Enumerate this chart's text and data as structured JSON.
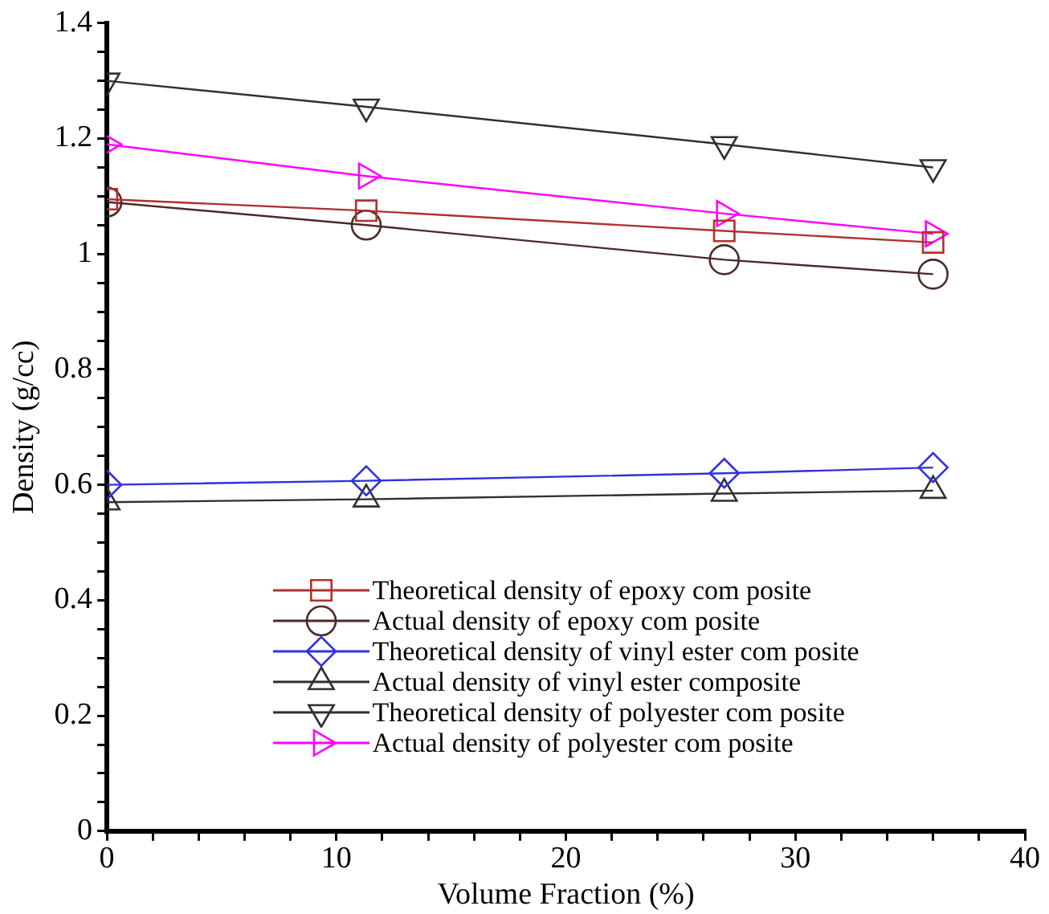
{
  "chart_data": {
    "type": "line",
    "xlabel": "Volume Fraction (%)",
    "ylabel": "Density (g/cc)",
    "x": [
      0,
      11.3,
      26.9,
      36
    ],
    "series": [
      {
        "name": "Theoretical density of epoxy com posite",
        "color": "#b03030",
        "marker": "square",
        "values": [
          1.095,
          1.075,
          1.04,
          1.02
        ]
      },
      {
        "name": "Actual density of epoxy com posite",
        "color": "#4a2a2a",
        "marker": "circle",
        "values": [
          1.09,
          1.05,
          0.99,
          0.965
        ]
      },
      {
        "name": "Theoretical density of vinyl ester com posite",
        "color": "#3030e0",
        "marker": "diamond",
        "values": [
          0.6,
          0.607,
          0.62,
          0.63
        ]
      },
      {
        "name": "Actual density of vinyl ester composite",
        "color": "#303030",
        "marker": "triangle",
        "values": [
          0.57,
          0.575,
          0.585,
          0.59
        ]
      },
      {
        "name": "Theoretical density of polyester com posite",
        "color": "#303030",
        "marker": "triangle-down",
        "values": [
          1.3,
          1.255,
          1.19,
          1.15
        ]
      },
      {
        "name": "Actual density of polyester com posite",
        "color": "#ff00ff",
        "marker": "triangle-right",
        "values": [
          1.19,
          1.135,
          1.07,
          1.035
        ]
      }
    ],
    "xlim": [
      0,
      40
    ],
    "xticks": [
      0,
      {
        "value": 2,
        "label": null
      },
      {
        "value": 4,
        "label": null
      },
      {
        "value": 6,
        "label": null
      },
      {
        "value": 8,
        "label": null
      },
      10,
      {
        "value": 12,
        "label": null
      },
      {
        "value": 14,
        "label": null
      },
      {
        "value": 16,
        "label": null
      },
      {
        "value": 18,
        "label": null
      },
      20,
      {
        "value": 22,
        "label": null
      },
      {
        "value": 24,
        "label": null
      },
      {
        "value": 26,
        "label": null
      },
      {
        "value": 28,
        "label": null
      },
      30,
      {
        "value": 32,
        "label": null
      },
      {
        "value": 34,
        "label": null
      },
      {
        "value": 36,
        "label": null
      },
      {
        "value": 38,
        "label": null
      },
      40
    ],
    "ylim": [
      0,
      1.4
    ],
    "yticks": [
      0,
      {
        "value": 0.05,
        "label": null
      },
      {
        "value": 0.1,
        "label": null
      },
      {
        "value": 0.15,
        "label": null
      },
      0.2,
      {
        "value": 0.25,
        "label": null
      },
      {
        "value": 0.3,
        "label": null
      },
      {
        "value": 0.35,
        "label": null
      },
      0.4,
      {
        "value": 0.45,
        "label": null
      },
      {
        "value": 0.5,
        "label": null
      },
      {
        "value": 0.55,
        "label": null
      },
      0.6,
      {
        "value": 0.65,
        "label": null
      },
      {
        "value": 0.7,
        "label": null
      },
      {
        "value": 0.75,
        "label": null
      },
      0.8,
      {
        "value": 0.85,
        "label": null
      },
      {
        "value": 0.9,
        "label": null
      },
      {
        "value": 0.95,
        "label": null
      },
      1,
      {
        "value": 1.05,
        "label": null
      },
      {
        "value": 1.1,
        "label": null
      },
      {
        "value": 1.15,
        "label": null
      },
      1.2,
      {
        "value": 1.25,
        "label": null
      },
      {
        "value": 1.3,
        "label": null
      },
      {
        "value": 1.35,
        "label": null
      },
      1.4
    ],
    "grid": false,
    "legend": "bottom",
    "line_style": "solid"
  }
}
